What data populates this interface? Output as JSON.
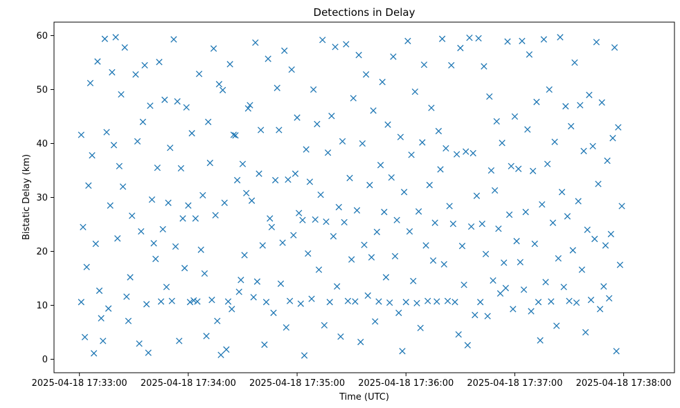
{
  "chart_data": {
    "type": "scatter",
    "title": "Detections in Delay",
    "xlabel": "Time (UTC)",
    "ylabel": "Bistatic Delay (km)",
    "x_ticks": [
      "2025-04-18 17:33:00",
      "2025-04-18 17:34:00",
      "2025-04-18 17:35:00",
      "2025-04-18 17:36:00",
      "2025-04-18 17:37:00",
      "2025-04-18 17:38:00"
    ],
    "xlim": [
      "2025-04-18 17:32:46",
      "2025-04-18 17:38:28"
    ],
    "y_ticks": [
      0,
      10,
      20,
      30,
      40,
      50,
      60
    ],
    "ylim": [
      -2.5,
      62.5
    ],
    "grid": false,
    "marker": "x",
    "color": "#1f77b4",
    "points": [
      [
        "17:33:01",
        41.6
      ],
      [
        "17:33:01",
        10.6
      ],
      [
        "17:33:02",
        24.5
      ],
      [
        "17:33:03",
        4.1
      ],
      [
        "17:33:04",
        17.1
      ],
      [
        "17:33:05",
        32.2
      ],
      [
        "17:33:06",
        51.2
      ],
      [
        "17:33:07",
        37.8
      ],
      [
        "17:33:08",
        1.1
      ],
      [
        "17:33:09",
        21.4
      ],
      [
        "17:33:10",
        55.2
      ],
      [
        "17:33:11",
        12.7
      ],
      [
        "17:33:12",
        7.6
      ],
      [
        "17:33:13",
        3.4
      ],
      [
        "17:33:14",
        59.4
      ],
      [
        "17:33:15",
        42.1
      ],
      [
        "17:33:16",
        9.4
      ],
      [
        "17:33:17",
        28.5
      ],
      [
        "17:33:18",
        53.2
      ],
      [
        "17:33:19",
        39.7
      ],
      [
        "17:33:20",
        59.7
      ],
      [
        "17:33:21",
        22.4
      ],
      [
        "17:33:22",
        35.8
      ],
      [
        "17:33:23",
        49.1
      ],
      [
        "17:33:24",
        32.0
      ],
      [
        "17:33:25",
        57.8
      ],
      [
        "17:33:26",
        11.6
      ],
      [
        "17:33:27",
        7.1
      ],
      [
        "17:33:28",
        15.2
      ],
      [
        "17:33:29",
        26.6
      ],
      [
        "17:33:31",
        52.8
      ],
      [
        "17:33:32",
        40.4
      ],
      [
        "17:33:33",
        2.9
      ],
      [
        "17:33:34",
        23.7
      ],
      [
        "17:33:35",
        44.0
      ],
      [
        "17:33:36",
        54.5
      ],
      [
        "17:33:37",
        10.2
      ],
      [
        "17:33:38",
        1.2
      ],
      [
        "17:33:39",
        47.0
      ],
      [
        "17:33:40",
        29.6
      ],
      [
        "17:33:41",
        21.5
      ],
      [
        "17:33:42",
        18.6
      ],
      [
        "17:33:43",
        35.5
      ],
      [
        "17:33:44",
        55.1
      ],
      [
        "17:33:45",
        10.7
      ],
      [
        "17:33:46",
        24.1
      ],
      [
        "17:33:47",
        48.1
      ],
      [
        "17:33:48",
        13.4
      ],
      [
        "17:33:49",
        29.0
      ],
      [
        "17:33:50",
        39.2
      ],
      [
        "17:33:51",
        10.8
      ],
      [
        "17:33:52",
        59.3
      ],
      [
        "17:33:53",
        20.9
      ],
      [
        "17:33:54",
        47.8
      ],
      [
        "17:33:55",
        3.4
      ],
      [
        "17:33:56",
        35.4
      ],
      [
        "17:33:57",
        26.1
      ],
      [
        "17:33:58",
        16.9
      ],
      [
        "17:33:59",
        46.7
      ],
      [
        "17:34:00",
        28.5
      ],
      [
        "17:34:01",
        10.6
      ],
      [
        "17:34:02",
        41.9
      ],
      [
        "17:34:03",
        10.9
      ],
      [
        "17:34:04",
        26.1
      ],
      [
        "17:34:05",
        10.7
      ],
      [
        "17:34:06",
        52.9
      ],
      [
        "17:34:07",
        20.3
      ],
      [
        "17:34:08",
        30.4
      ],
      [
        "17:34:09",
        15.9
      ],
      [
        "17:34:10",
        4.3
      ],
      [
        "17:34:11",
        44.0
      ],
      [
        "17:34:12",
        36.4
      ],
      [
        "17:34:13",
        11.0
      ],
      [
        "17:34:14",
        57.6
      ],
      [
        "17:34:15",
        26.7
      ],
      [
        "17:34:16",
        7.1
      ],
      [
        "17:34:17",
        51.0
      ],
      [
        "17:34:18",
        0.8
      ],
      [
        "17:34:19",
        49.9
      ],
      [
        "17:34:20",
        29.0
      ],
      [
        "17:34:21",
        1.8
      ],
      [
        "17:34:22",
        10.7
      ],
      [
        "17:34:23",
        54.7
      ],
      [
        "17:34:24",
        9.3
      ],
      [
        "17:34:25",
        41.6
      ],
      [
        "17:34:26",
        41.5
      ],
      [
        "17:34:27",
        33.2
      ],
      [
        "17:34:28",
        12.5
      ],
      [
        "17:34:29",
        14.7
      ],
      [
        "17:34:30",
        36.2
      ],
      [
        "17:34:31",
        19.3
      ],
      [
        "17:34:32",
        30.8
      ],
      [
        "17:34:33",
        46.5
      ],
      [
        "17:34:34",
        47.1
      ],
      [
        "17:34:35",
        29.4
      ],
      [
        "17:34:36",
        11.5
      ],
      [
        "17:34:37",
        58.7
      ],
      [
        "17:34:38",
        14.4
      ],
      [
        "17:34:39",
        34.4
      ],
      [
        "17:34:40",
        42.5
      ],
      [
        "17:34:41",
        21.1
      ],
      [
        "17:34:42",
        2.7
      ],
      [
        "17:34:43",
        10.6
      ],
      [
        "17:34:44",
        55.7
      ],
      [
        "17:34:45",
        26.1
      ],
      [
        "17:34:46",
        24.5
      ],
      [
        "17:34:47",
        8.6
      ],
      [
        "17:34:48",
        33.2
      ],
      [
        "17:34:49",
        50.3
      ],
      [
        "17:34:50",
        42.5
      ],
      [
        "17:34:51",
        14.0
      ],
      [
        "17:34:52",
        21.6
      ],
      [
        "17:34:53",
        57.2
      ],
      [
        "17:34:54",
        5.9
      ],
      [
        "17:34:55",
        33.3
      ],
      [
        "17:34:56",
        10.8
      ],
      [
        "17:34:57",
        53.7
      ],
      [
        "17:34:58",
        23.0
      ],
      [
        "17:34:59",
        34.4
      ],
      [
        "17:35:00",
        44.8
      ],
      [
        "17:35:01",
        27.1
      ],
      [
        "17:35:02",
        10.3
      ],
      [
        "17:35:03",
        25.8
      ],
      [
        "17:35:04",
        0.7
      ],
      [
        "17:35:05",
        38.9
      ],
      [
        "17:35:06",
        19.6
      ],
      [
        "17:35:07",
        32.9
      ],
      [
        "17:35:08",
        11.2
      ],
      [
        "17:35:09",
        50.0
      ],
      [
        "17:35:10",
        25.9
      ],
      [
        "17:35:11",
        43.6
      ],
      [
        "17:35:12",
        16.6
      ],
      [
        "17:35:13",
        30.5
      ],
      [
        "17:35:14",
        59.2
      ],
      [
        "17:35:15",
        6.3
      ],
      [
        "17:35:16",
        25.5
      ],
      [
        "17:35:17",
        38.3
      ],
      [
        "17:35:18",
        10.6
      ],
      [
        "17:35:19",
        45.1
      ],
      [
        "17:35:20",
        22.8
      ],
      [
        "17:35:21",
        57.9
      ],
      [
        "17:35:22",
        13.5
      ],
      [
        "17:35:23",
        28.2
      ],
      [
        "17:35:24",
        4.2
      ],
      [
        "17:35:25",
        40.4
      ],
      [
        "17:35:26",
        25.4
      ],
      [
        "17:35:27",
        58.4
      ],
      [
        "17:35:28",
        10.8
      ],
      [
        "17:35:29",
        33.6
      ],
      [
        "17:35:30",
        18.5
      ],
      [
        "17:35:31",
        48.4
      ],
      [
        "17:35:32",
        10.7
      ],
      [
        "17:35:33",
        27.6
      ],
      [
        "17:35:34",
        56.4
      ],
      [
        "17:35:35",
        3.2
      ],
      [
        "17:35:36",
        40.0
      ],
      [
        "17:35:37",
        21.2
      ],
      [
        "17:35:38",
        52.8
      ],
      [
        "17:35:39",
        11.8
      ],
      [
        "17:35:40",
        32.3
      ],
      [
        "17:35:41",
        18.9
      ],
      [
        "17:35:42",
        46.1
      ],
      [
        "17:35:43",
        7.0
      ],
      [
        "17:35:44",
        23.6
      ],
      [
        "17:35:45",
        10.7
      ],
      [
        "17:35:46",
        36.0
      ],
      [
        "17:35:47",
        51.4
      ],
      [
        "17:35:48",
        27.3
      ],
      [
        "17:35:49",
        15.2
      ],
      [
        "17:35:50",
        43.5
      ],
      [
        "17:35:51",
        10.5
      ],
      [
        "17:35:52",
        33.7
      ],
      [
        "17:35:53",
        56.1
      ],
      [
        "17:35:54",
        19.1
      ],
      [
        "17:35:55",
        25.8
      ],
      [
        "17:35:56",
        8.6
      ],
      [
        "17:35:57",
        41.2
      ],
      [
        "17:35:58",
        1.5
      ],
      [
        "17:35:59",
        31.0
      ],
      [
        "17:36:00",
        10.6
      ],
      [
        "17:36:01",
        59.0
      ],
      [
        "17:36:02",
        23.7
      ],
      [
        "17:36:03",
        37.9
      ],
      [
        "17:36:04",
        14.5
      ],
      [
        "17:36:05",
        49.6
      ],
      [
        "17:36:06",
        10.4
      ],
      [
        "17:36:07",
        27.4
      ],
      [
        "17:36:08",
        5.8
      ],
      [
        "17:36:09",
        40.2
      ],
      [
        "17:36:10",
        54.6
      ],
      [
        "17:36:11",
        21.1
      ],
      [
        "17:36:12",
        10.8
      ],
      [
        "17:36:13",
        32.3
      ],
      [
        "17:36:14",
        46.6
      ],
      [
        "17:36:15",
        18.3
      ],
      [
        "17:36:16",
        25.3
      ],
      [
        "17:36:17",
        10.7
      ],
      [
        "17:36:18",
        42.3
      ],
      [
        "17:36:19",
        35.2
      ],
      [
        "17:36:20",
        59.4
      ],
      [
        "17:36:21",
        17.6
      ],
      [
        "17:36:22",
        39.1
      ],
      [
        "17:36:23",
        10.8
      ],
      [
        "17:36:24",
        28.4
      ],
      [
        "17:36:25",
        54.5
      ],
      [
        "17:36:26",
        25.1
      ],
      [
        "17:36:27",
        10.6
      ],
      [
        "17:36:28",
        38.0
      ],
      [
        "17:36:29",
        4.6
      ],
      [
        "17:36:30",
        57.7
      ],
      [
        "17:36:31",
        21.0
      ],
      [
        "17:36:32",
        13.8
      ],
      [
        "17:36:33",
        38.5
      ],
      [
        "17:36:34",
        2.6
      ],
      [
        "17:36:35",
        59.6
      ],
      [
        "17:36:36",
        24.6
      ],
      [
        "17:36:37",
        38.2
      ],
      [
        "17:36:38",
        8.2
      ],
      [
        "17:36:39",
        30.3
      ],
      [
        "17:36:40",
        59.5
      ],
      [
        "17:36:41",
        10.6
      ],
      [
        "17:36:42",
        25.1
      ],
      [
        "17:36:43",
        54.3
      ],
      [
        "17:36:44",
        19.5
      ],
      [
        "17:36:45",
        8.0
      ],
      [
        "17:36:46",
        48.7
      ],
      [
        "17:36:47",
        35.0
      ],
      [
        "17:36:48",
        14.6
      ],
      [
        "17:36:49",
        31.3
      ],
      [
        "17:36:50",
        44.1
      ],
      [
        "17:36:51",
        24.2
      ],
      [
        "17:36:52",
        12.2
      ],
      [
        "17:36:53",
        40.1
      ],
      [
        "17:36:54",
        17.9
      ],
      [
        "17:36:55",
        13.2
      ],
      [
        "17:36:56",
        58.9
      ],
      [
        "17:36:57",
        26.8
      ],
      [
        "17:36:58",
        35.8
      ],
      [
        "17:36:59",
        9.3
      ],
      [
        "17:37:00",
        45.0
      ],
      [
        "17:37:01",
        21.9
      ],
      [
        "17:37:02",
        35.3
      ],
      [
        "17:37:03",
        18.0
      ],
      [
        "17:37:04",
        59.0
      ],
      [
        "17:37:05",
        12.9
      ],
      [
        "17:37:06",
        27.3
      ],
      [
        "17:37:07",
        42.6
      ],
      [
        "17:37:08",
        56.5
      ],
      [
        "17:37:09",
        8.9
      ],
      [
        "17:37:10",
        34.9
      ],
      [
        "17:37:11",
        21.4
      ],
      [
        "17:37:12",
        47.7
      ],
      [
        "17:37:13",
        10.6
      ],
      [
        "17:37:14",
        3.5
      ],
      [
        "17:37:15",
        28.7
      ],
      [
        "17:37:16",
        59.3
      ],
      [
        "17:37:17",
        14.3
      ],
      [
        "17:37:18",
        36.2
      ],
      [
        "17:37:19",
        50.0
      ],
      [
        "17:37:20",
        10.7
      ],
      [
        "17:37:21",
        25.3
      ],
      [
        "17:37:22",
        40.3
      ],
      [
        "17:37:23",
        6.2
      ],
      [
        "17:37:24",
        18.7
      ],
      [
        "17:37:25",
        59.7
      ],
      [
        "17:37:26",
        31.0
      ],
      [
        "17:37:27",
        13.4
      ],
      [
        "17:37:28",
        46.9
      ],
      [
        "17:37:29",
        26.5
      ],
      [
        "17:37:30",
        10.8
      ],
      [
        "17:37:31",
        43.2
      ],
      [
        "17:37:32",
        20.2
      ],
      [
        "17:37:33",
        55.0
      ],
      [
        "17:37:34",
        10.5
      ],
      [
        "17:37:35",
        29.3
      ],
      [
        "17:37:36",
        47.1
      ],
      [
        "17:37:37",
        16.6
      ],
      [
        "17:37:38",
        38.6
      ],
      [
        "17:37:39",
        5.0
      ],
      [
        "17:37:40",
        24.0
      ],
      [
        "17:37:41",
        49.0
      ],
      [
        "17:37:42",
        11.0
      ],
      [
        "17:37:43",
        39.5
      ],
      [
        "17:37:44",
        22.3
      ],
      [
        "17:37:45",
        58.8
      ],
      [
        "17:37:46",
        32.5
      ],
      [
        "17:37:47",
        9.3
      ],
      [
        "17:37:48",
        47.6
      ],
      [
        "17:37:49",
        13.5
      ],
      [
        "17:37:50",
        21.1
      ],
      [
        "17:37:51",
        36.8
      ],
      [
        "17:37:52",
        11.3
      ],
      [
        "17:37:53",
        23.2
      ],
      [
        "17:37:54",
        41.0
      ],
      [
        "17:37:55",
        57.8
      ],
      [
        "17:37:56",
        1.5
      ],
      [
        "17:37:57",
        43.0
      ],
      [
        "17:37:58",
        17.5
      ],
      [
        "17:37:59",
        28.4
      ]
    ]
  }
}
